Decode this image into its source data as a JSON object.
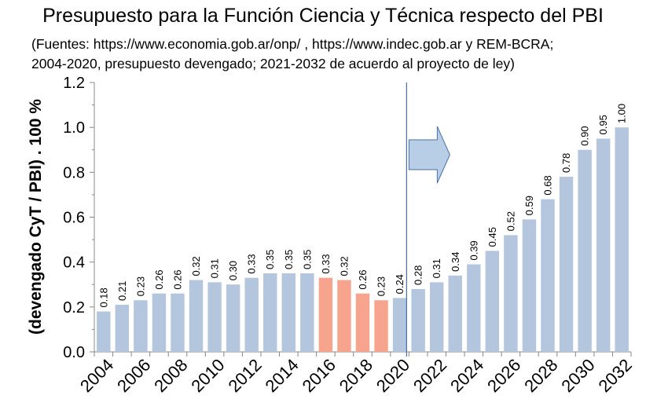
{
  "chart_data": {
    "type": "bar",
    "title": "Presupuesto para la Función Ciencia y Técnica respecto del PBI",
    "subtitle_lines": [
      "(Fuentes: https://www.economia.gob.ar/onp/ , https://www.indec.gob.ar y REM-BCRA;",
      "2004-2020, presupuesto devengado; 2021-2032 de acuerdo al proyecto de ley)"
    ],
    "ylabel": "(devengado CyT / PBI) . 100 %",
    "xlabel": "",
    "ylim": [
      0,
      1.2
    ],
    "yticks": [
      "0.0",
      "0.2",
      "0.4",
      "0.6",
      "0.8",
      "1.0",
      "1.2"
    ],
    "categories": [
      2004,
      2005,
      2006,
      2007,
      2008,
      2009,
      2010,
      2011,
      2012,
      2013,
      2014,
      2015,
      2016,
      2017,
      2018,
      2019,
      2020,
      2021,
      2022,
      2023,
      2024,
      2025,
      2026,
      2027,
      2028,
      2029,
      2030,
      2031,
      2032
    ],
    "xtick_labels": [
      "2004",
      "2006",
      "2008",
      "2010",
      "2012",
      "2014",
      "2016",
      "2018",
      "2020",
      "2022",
      "2024",
      "2026",
      "2028",
      "2030",
      "2032"
    ],
    "values": [
      0.18,
      0.21,
      0.23,
      0.26,
      0.26,
      0.32,
      0.31,
      0.3,
      0.33,
      0.35,
      0.35,
      0.35,
      0.33,
      0.32,
      0.26,
      0.23,
      0.24,
      0.28,
      0.31,
      0.34,
      0.39,
      0.45,
      0.52,
      0.59,
      0.68,
      0.78,
      0.9,
      0.95,
      1.0
    ],
    "value_labels": [
      "0.18",
      "0.21",
      "0.23",
      "0.26",
      "0.26",
      "0.32",
      "0.31",
      "0.30",
      "0.33",
      "0.35",
      "0.35",
      "0.35",
      "0.33",
      "0.32",
      "0.26",
      "0.23",
      "0.24",
      "0.28",
      "0.31",
      "0.34",
      "0.39",
      "0.45",
      "0.52",
      "0.59",
      "0.68",
      "0.78",
      "0.90",
      "0.95",
      "1.00"
    ],
    "highlight_years": [
      2016,
      2017,
      2018,
      2019
    ],
    "divider_after": 2020,
    "colors": {
      "bar": "#b4c6de",
      "highlight": "#f7a48f",
      "divider": "#4a6fa0",
      "arrow_fill": "#b8cde6",
      "arrow_stroke": "#4a72a8"
    },
    "grid": false
  }
}
